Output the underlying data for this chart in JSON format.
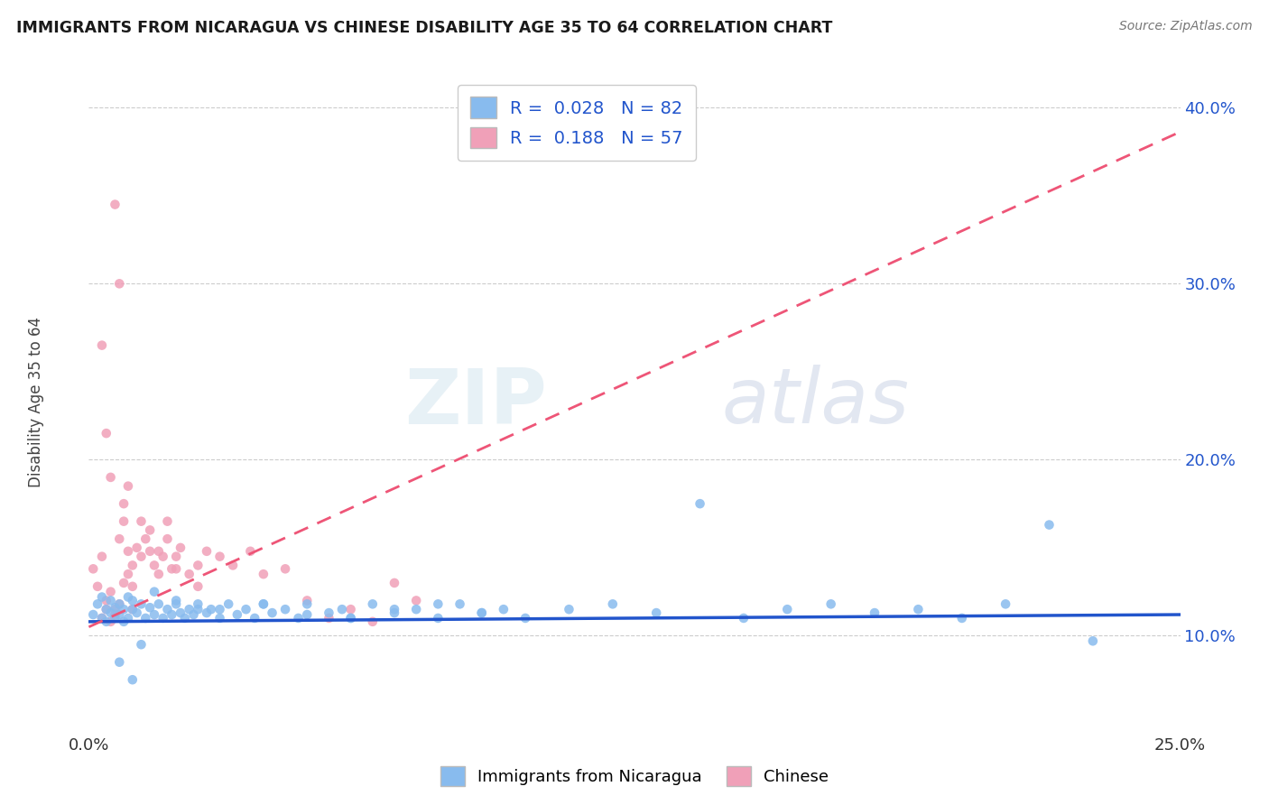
{
  "title": "IMMIGRANTS FROM NICARAGUA VS CHINESE DISABILITY AGE 35 TO 64 CORRELATION CHART",
  "source_text": "Source: ZipAtlas.com",
  "ylabel": "Disability Age 35 to 64",
  "xlim": [
    0.0,
    0.25
  ],
  "ylim": [
    0.045,
    0.42
  ],
  "xtick_vals": [
    0.0,
    0.05,
    0.1,
    0.15,
    0.2,
    0.25
  ],
  "ytick_vals": [
    0.1,
    0.2,
    0.3,
    0.4
  ],
  "ytick_labels": [
    "10.0%",
    "20.0%",
    "30.0%",
    "40.0%"
  ],
  "legend_label1": "Immigrants from Nicaragua",
  "legend_label2": "Chinese",
  "R1": "0.028",
  "N1": "82",
  "R2": "0.188",
  "N2": "57",
  "color1": "#88bbee",
  "color2": "#f0a0b8",
  "trendline1_color": "#2255cc",
  "trendline2_color": "#ee5577",
  "watermark1": "ZIP",
  "watermark2": "atlas",
  "background_color": "#ffffff",
  "grid_color": "#cccccc",
  "blue_scatter_x": [
    0.001,
    0.002,
    0.003,
    0.003,
    0.004,
    0.004,
    0.005,
    0.005,
    0.006,
    0.006,
    0.007,
    0.007,
    0.008,
    0.008,
    0.009,
    0.009,
    0.01,
    0.01,
    0.011,
    0.012,
    0.013,
    0.014,
    0.015,
    0.016,
    0.017,
    0.018,
    0.019,
    0.02,
    0.021,
    0.022,
    0.023,
    0.024,
    0.025,
    0.027,
    0.028,
    0.03,
    0.032,
    0.034,
    0.036,
    0.038,
    0.04,
    0.042,
    0.045,
    0.048,
    0.05,
    0.055,
    0.058,
    0.06,
    0.065,
    0.07,
    0.075,
    0.08,
    0.085,
    0.09,
    0.095,
    0.1,
    0.11,
    0.12,
    0.13,
    0.14,
    0.15,
    0.16,
    0.17,
    0.18,
    0.19,
    0.2,
    0.21,
    0.22,
    0.23,
    0.01,
    0.015,
    0.02,
    0.025,
    0.03,
    0.04,
    0.05,
    0.06,
    0.07,
    0.08,
    0.09,
    0.007,
    0.012
  ],
  "blue_scatter_y": [
    0.112,
    0.118,
    0.11,
    0.122,
    0.115,
    0.108,
    0.12,
    0.113,
    0.116,
    0.11,
    0.118,
    0.112,
    0.115,
    0.108,
    0.122,
    0.11,
    0.115,
    0.12,
    0.113,
    0.118,
    0.11,
    0.116,
    0.112,
    0.118,
    0.11,
    0.115,
    0.112,
    0.118,
    0.113,
    0.11,
    0.115,
    0.112,
    0.118,
    0.113,
    0.115,
    0.11,
    0.118,
    0.112,
    0.115,
    0.11,
    0.118,
    0.113,
    0.115,
    0.11,
    0.118,
    0.113,
    0.115,
    0.11,
    0.118,
    0.113,
    0.115,
    0.11,
    0.118,
    0.113,
    0.115,
    0.11,
    0.115,
    0.118,
    0.113,
    0.175,
    0.11,
    0.115,
    0.118,
    0.113,
    0.115,
    0.11,
    0.118,
    0.163,
    0.097,
    0.075,
    0.125,
    0.12,
    0.115,
    0.115,
    0.118,
    0.112,
    0.11,
    0.115,
    0.118,
    0.113,
    0.085,
    0.095
  ],
  "pink_scatter_x": [
    0.001,
    0.002,
    0.003,
    0.003,
    0.004,
    0.004,
    0.005,
    0.005,
    0.006,
    0.006,
    0.007,
    0.007,
    0.008,
    0.008,
    0.009,
    0.009,
    0.01,
    0.01,
    0.011,
    0.012,
    0.013,
    0.014,
    0.015,
    0.016,
    0.017,
    0.018,
    0.019,
    0.02,
    0.021,
    0.023,
    0.025,
    0.027,
    0.03,
    0.033,
    0.037,
    0.04,
    0.045,
    0.05,
    0.055,
    0.06,
    0.065,
    0.07,
    0.075,
    0.003,
    0.004,
    0.005,
    0.006,
    0.007,
    0.008,
    0.009,
    0.01,
    0.012,
    0.014,
    0.016,
    0.018,
    0.02,
    0.025
  ],
  "pink_scatter_y": [
    0.138,
    0.128,
    0.11,
    0.145,
    0.12,
    0.115,
    0.108,
    0.125,
    0.115,
    0.112,
    0.118,
    0.155,
    0.165,
    0.13,
    0.148,
    0.135,
    0.128,
    0.14,
    0.15,
    0.145,
    0.155,
    0.148,
    0.14,
    0.135,
    0.145,
    0.155,
    0.138,
    0.145,
    0.15,
    0.135,
    0.14,
    0.148,
    0.145,
    0.14,
    0.148,
    0.135,
    0.138,
    0.12,
    0.11,
    0.115,
    0.108,
    0.13,
    0.12,
    0.265,
    0.215,
    0.19,
    0.345,
    0.3,
    0.175,
    0.185,
    0.115,
    0.165,
    0.16,
    0.148,
    0.165,
    0.138,
    0.128
  ],
  "trendline1_x_start": 0.0,
  "trendline1_y_start": 0.108,
  "trendline1_x_end": 0.25,
  "trendline1_y_end": 0.112,
  "trendline2_x_start": 0.0,
  "trendline2_y_start": 0.105,
  "trendline2_x_end": 0.08,
  "trendline2_y_end": 0.195
}
